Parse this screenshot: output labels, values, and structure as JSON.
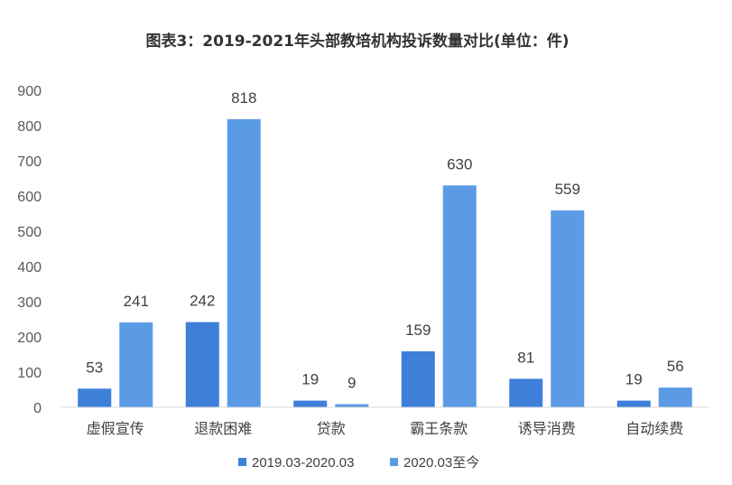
{
  "chart_data": {
    "type": "bar",
    "title": "图表3：2019-2021年头部教培机构投诉数量对比(单位：件)",
    "categories": [
      "虚假宣传",
      "退款困难",
      "贷款",
      "霸王条款",
      "诱导消费",
      "自动续费"
    ],
    "series": [
      {
        "name": "2019.03-2020.03",
        "color": "#3d7fd9",
        "values": [
          53,
          242,
          19,
          159,
          81,
          19
        ]
      },
      {
        "name": "2020.03至今",
        "color": "#5b9be6",
        "values": [
          241,
          818,
          9,
          630,
          559,
          56
        ]
      }
    ],
    "yticks": [
      0,
      100,
      200,
      300,
      400,
      500,
      600,
      700,
      800,
      900
    ],
    "ylim": [
      0,
      900
    ],
    "grid": false,
    "legend_position": "bottom",
    "data_labels": true
  }
}
